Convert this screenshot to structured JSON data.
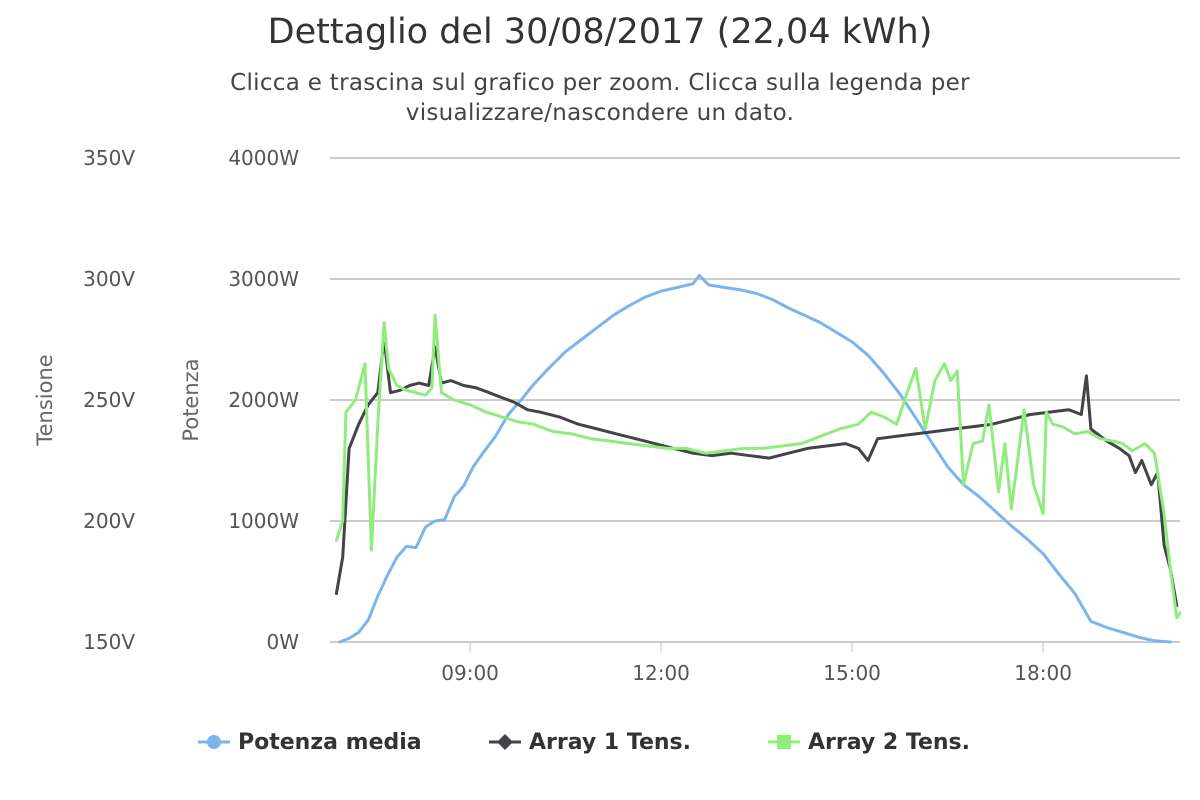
{
  "chart_data": {
    "type": "line",
    "title": "Dettaglio del 30/08/2017 (22,04 kWh)",
    "subtitle": "Clicca e trascina sul grafico per zoom. Clicca sulla legenda per visualizzare/nascondere un dato.",
    "x_ticks": [
      "09:00",
      "12:00",
      "15:00",
      "18:00"
    ],
    "x_range_hours": [
      6.8,
      20.15
    ],
    "y_axes": [
      {
        "id": "voltage",
        "title": "Tensione",
        "unit": "V",
        "range": [
          150,
          350
        ],
        "ticks": [
          "150V",
          "200V",
          "250V",
          "300V",
          "350V"
        ]
      },
      {
        "id": "power",
        "title": "Potenza",
        "unit": "W",
        "range": [
          0,
          4000
        ],
        "ticks": [
          "0W",
          "1000W",
          "2000W",
          "3000W",
          "4000W"
        ]
      }
    ],
    "grid": true,
    "legend_position": "bottom",
    "series": [
      {
        "name": "Potenza media",
        "axis": "power",
        "color": "#7cb5ec",
        "marker": "circle",
        "points": [
          [
            6.95,
            0
          ],
          [
            7.1,
            30
          ],
          [
            7.25,
            80
          ],
          [
            7.4,
            180
          ],
          [
            7.55,
            380
          ],
          [
            7.7,
            550
          ],
          [
            7.85,
            700
          ],
          [
            8.0,
            790
          ],
          [
            8.15,
            780
          ],
          [
            8.3,
            950
          ],
          [
            8.45,
            1000
          ],
          [
            8.6,
            1010
          ],
          [
            8.75,
            1200
          ],
          [
            8.9,
            1290
          ],
          [
            9.05,
            1450
          ],
          [
            9.2,
            1560
          ],
          [
            9.4,
            1700
          ],
          [
            9.6,
            1880
          ],
          [
            9.8,
            2000
          ],
          [
            10.0,
            2130
          ],
          [
            10.25,
            2270
          ],
          [
            10.5,
            2400
          ],
          [
            10.75,
            2500
          ],
          [
            11.0,
            2600
          ],
          [
            11.25,
            2700
          ],
          [
            11.5,
            2780
          ],
          [
            11.75,
            2850
          ],
          [
            12.0,
            2900
          ],
          [
            12.25,
            2930
          ],
          [
            12.5,
            2960
          ],
          [
            12.6,
            3030
          ],
          [
            12.75,
            2950
          ],
          [
            13.0,
            2930
          ],
          [
            13.25,
            2910
          ],
          [
            13.5,
            2880
          ],
          [
            13.75,
            2830
          ],
          [
            14.0,
            2760
          ],
          [
            14.25,
            2700
          ],
          [
            14.5,
            2640
          ],
          [
            14.75,
            2560
          ],
          [
            15.0,
            2480
          ],
          [
            15.25,
            2370
          ],
          [
            15.5,
            2220
          ],
          [
            15.75,
            2050
          ],
          [
            16.0,
            1850
          ],
          [
            16.25,
            1650
          ],
          [
            16.5,
            1450
          ],
          [
            16.75,
            1300
          ],
          [
            17.0,
            1200
          ],
          [
            17.25,
            1080
          ],
          [
            17.5,
            960
          ],
          [
            17.75,
            850
          ],
          [
            18.0,
            730
          ],
          [
            18.25,
            560
          ],
          [
            18.5,
            400
          ],
          [
            18.75,
            170
          ],
          [
            19.0,
            120
          ],
          [
            19.25,
            80
          ],
          [
            19.5,
            40
          ],
          [
            19.75,
            10
          ],
          [
            20.0,
            0
          ]
        ]
      },
      {
        "name": "Array 1 Tens.",
        "axis": "voltage",
        "color": "#434348",
        "marker": "diamond",
        "points": [
          [
            6.9,
            170
          ],
          [
            7.0,
            185
          ],
          [
            7.1,
            230
          ],
          [
            7.25,
            240
          ],
          [
            7.4,
            248
          ],
          [
            7.55,
            253
          ],
          [
            7.65,
            275
          ],
          [
            7.75,
            253
          ],
          [
            7.9,
            254
          ],
          [
            8.05,
            256
          ],
          [
            8.2,
            257
          ],
          [
            8.35,
            256
          ],
          [
            8.45,
            272
          ],
          [
            8.55,
            257
          ],
          [
            8.7,
            258
          ],
          [
            8.9,
            256
          ],
          [
            9.1,
            255
          ],
          [
            9.3,
            253
          ],
          [
            9.5,
            251
          ],
          [
            9.7,
            249
          ],
          [
            9.9,
            246
          ],
          [
            10.1,
            245
          ],
          [
            10.4,
            243
          ],
          [
            10.7,
            240
          ],
          [
            11.0,
            238
          ],
          [
            11.3,
            236
          ],
          [
            11.6,
            234
          ],
          [
            11.9,
            232
          ],
          [
            12.2,
            230
          ],
          [
            12.5,
            228
          ],
          [
            12.8,
            227
          ],
          [
            13.1,
            228
          ],
          [
            13.4,
            227
          ],
          [
            13.7,
            226
          ],
          [
            14.0,
            228
          ],
          [
            14.3,
            230
          ],
          [
            14.6,
            231
          ],
          [
            14.9,
            232
          ],
          [
            15.1,
            230
          ],
          [
            15.25,
            225
          ],
          [
            15.4,
            234
          ],
          [
            15.7,
            235
          ],
          [
            16.0,
            236
          ],
          [
            16.3,
            237
          ],
          [
            16.6,
            238
          ],
          [
            16.9,
            239
          ],
          [
            17.2,
            240
          ],
          [
            17.5,
            242
          ],
          [
            17.8,
            244
          ],
          [
            18.1,
            245
          ],
          [
            18.4,
            246
          ],
          [
            18.6,
            244
          ],
          [
            18.68,
            260
          ],
          [
            18.75,
            238
          ],
          [
            19.0,
            233
          ],
          [
            19.2,
            230
          ],
          [
            19.35,
            227
          ],
          [
            19.45,
            220
          ],
          [
            19.55,
            225
          ],
          [
            19.7,
            215
          ],
          [
            19.8,
            220
          ],
          [
            19.9,
            190
          ],
          [
            20.0,
            180
          ],
          [
            20.1,
            165
          ]
        ]
      },
      {
        "name": "Array 2 Tens.",
        "axis": "voltage",
        "color": "#90ed7d",
        "marker": "square",
        "points": [
          [
            6.9,
            192
          ],
          [
            7.0,
            200
          ],
          [
            7.05,
            245
          ],
          [
            7.2,
            250
          ],
          [
            7.35,
            265
          ],
          [
            7.45,
            188
          ],
          [
            7.55,
            240
          ],
          [
            7.65,
            282
          ],
          [
            7.72,
            263
          ],
          [
            7.85,
            256
          ],
          [
            8.0,
            254
          ],
          [
            8.15,
            253
          ],
          [
            8.3,
            252
          ],
          [
            8.4,
            255
          ],
          [
            8.45,
            285
          ],
          [
            8.55,
            253
          ],
          [
            8.75,
            250
          ],
          [
            9.0,
            248
          ],
          [
            9.25,
            245
          ],
          [
            9.5,
            243
          ],
          [
            9.75,
            241
          ],
          [
            10.0,
            240
          ],
          [
            10.3,
            237
          ],
          [
            10.6,
            236
          ],
          [
            10.9,
            234
          ],
          [
            11.2,
            233
          ],
          [
            11.5,
            232
          ],
          [
            11.8,
            231
          ],
          [
            12.1,
            230
          ],
          [
            12.4,
            230
          ],
          [
            12.7,
            228
          ],
          [
            13.0,
            229
          ],
          [
            13.3,
            230
          ],
          [
            13.6,
            230
          ],
          [
            13.9,
            231
          ],
          [
            14.2,
            232
          ],
          [
            14.5,
            235
          ],
          [
            14.8,
            238
          ],
          [
            15.1,
            240
          ],
          [
            15.3,
            245
          ],
          [
            15.5,
            243
          ],
          [
            15.7,
            240
          ],
          [
            15.85,
            252
          ],
          [
            16.0,
            263
          ],
          [
            16.15,
            238
          ],
          [
            16.3,
            258
          ],
          [
            16.45,
            265
          ],
          [
            16.55,
            258
          ],
          [
            16.65,
            262
          ],
          [
            16.75,
            215
          ],
          [
            16.9,
            232
          ],
          [
            17.05,
            233
          ],
          [
            17.15,
            248
          ],
          [
            17.3,
            212
          ],
          [
            17.4,
            232
          ],
          [
            17.5,
            205
          ],
          [
            17.6,
            225
          ],
          [
            17.7,
            246
          ],
          [
            17.85,
            215
          ],
          [
            18.0,
            203
          ],
          [
            18.05,
            245
          ],
          [
            18.15,
            240
          ],
          [
            18.3,
            239
          ],
          [
            18.5,
            236
          ],
          [
            18.7,
            237
          ],
          [
            18.9,
            234
          ],
          [
            19.1,
            233
          ],
          [
            19.25,
            232
          ],
          [
            19.4,
            229
          ],
          [
            19.6,
            232
          ],
          [
            19.75,
            228
          ],
          [
            19.9,
            203
          ],
          [
            20.0,
            180
          ],
          [
            20.1,
            160
          ],
          [
            20.15,
            162
          ]
        ]
      }
    ]
  }
}
